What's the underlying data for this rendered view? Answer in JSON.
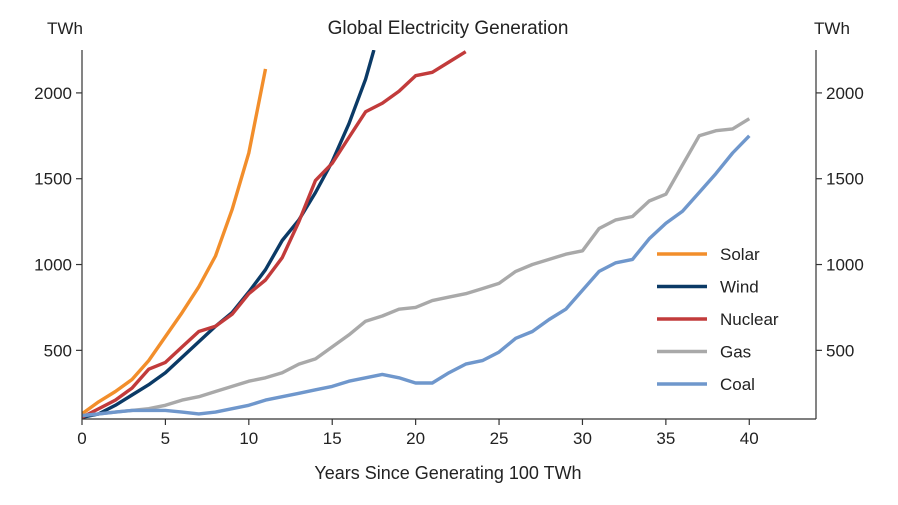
{
  "chart_data": {
    "type": "line",
    "title": "Global Electricity Generation",
    "xlabel": "Years Since Generating 100 TWh",
    "ylabel_left": "TWh",
    "ylabel_right": "TWh",
    "xlim": [
      0,
      44
    ],
    "ylim": [
      100,
      2250
    ],
    "xticks": [
      0,
      5,
      10,
      15,
      20,
      25,
      30,
      35,
      40
    ],
    "yticks": [
      500,
      1000,
      1500,
      2000
    ],
    "grid": false,
    "legend_position": "center-right",
    "series": [
      {
        "name": "Solar",
        "color": "#f28e2b",
        "x": [
          0,
          1,
          2,
          3,
          4,
          5,
          6,
          7,
          8,
          9,
          10,
          11
        ],
        "y": [
          130,
          200,
          260,
          330,
          440,
          580,
          720,
          870,
          1050,
          1320,
          1650,
          2140
        ]
      },
      {
        "name": "Wind",
        "color": "#0b3a66",
        "x": [
          0,
          1,
          2,
          3,
          4,
          5,
          6,
          7,
          8,
          9,
          10,
          11,
          12,
          13,
          14,
          15,
          16,
          17,
          17.5
        ],
        "y": [
          110,
          130,
          180,
          240,
          300,
          370,
          460,
          550,
          640,
          720,
          840,
          970,
          1140,
          1260,
          1420,
          1600,
          1820,
          2080,
          2250
        ]
      },
      {
        "name": "Nuclear",
        "color": "#c23b3b",
        "x": [
          0,
          1,
          2,
          3,
          4,
          5,
          6,
          7,
          8,
          9,
          10,
          11,
          12,
          13,
          14,
          15,
          16,
          17,
          18,
          19,
          20,
          21,
          22,
          23
        ],
        "y": [
          110,
          160,
          210,
          280,
          390,
          430,
          520,
          610,
          640,
          710,
          830,
          910,
          1040,
          1250,
          1490,
          1590,
          1740,
          1890,
          1940,
          2010,
          2100,
          2120,
          2180,
          2240
        ]
      },
      {
        "name": "Gas",
        "color": "#a9a9a9",
        "x": [
          0,
          1,
          2,
          3,
          4,
          5,
          6,
          7,
          8,
          9,
          10,
          11,
          12,
          13,
          14,
          15,
          16,
          17,
          18,
          19,
          20,
          21,
          22,
          23,
          24,
          25,
          26,
          27,
          28,
          29,
          30,
          31,
          32,
          33,
          34,
          35,
          36,
          37,
          38,
          39,
          40
        ],
        "y": [
          120,
          130,
          140,
          150,
          160,
          180,
          210,
          230,
          260,
          290,
          320,
          340,
          370,
          420,
          450,
          520,
          590,
          670,
          700,
          740,
          750,
          790,
          810,
          830,
          860,
          890,
          960,
          1000,
          1030,
          1060,
          1080,
          1210,
          1260,
          1280,
          1370,
          1410,
          1580,
          1750,
          1780,
          1790,
          1850
        ]
      },
      {
        "name": "Coal",
        "color": "#6f97cc",
        "x": [
          0,
          1,
          2,
          3,
          4,
          5,
          6,
          7,
          8,
          9,
          10,
          11,
          12,
          13,
          14,
          15,
          16,
          17,
          18,
          19,
          20,
          21,
          22,
          23,
          24,
          25,
          26,
          27,
          28,
          29,
          30,
          31,
          32,
          33,
          34,
          35,
          36,
          37,
          38,
          39,
          40
        ],
        "y": [
          120,
          130,
          140,
          150,
          150,
          150,
          140,
          130,
          140,
          160,
          180,
          210,
          230,
          250,
          270,
          290,
          320,
          340,
          360,
          340,
          310,
          310,
          370,
          420,
          440,
          490,
          570,
          610,
          680,
          740,
          850,
          960,
          1010,
          1030,
          1150,
          1240,
          1310,
          1420,
          1530,
          1650,
          1750
        ]
      }
    ]
  }
}
